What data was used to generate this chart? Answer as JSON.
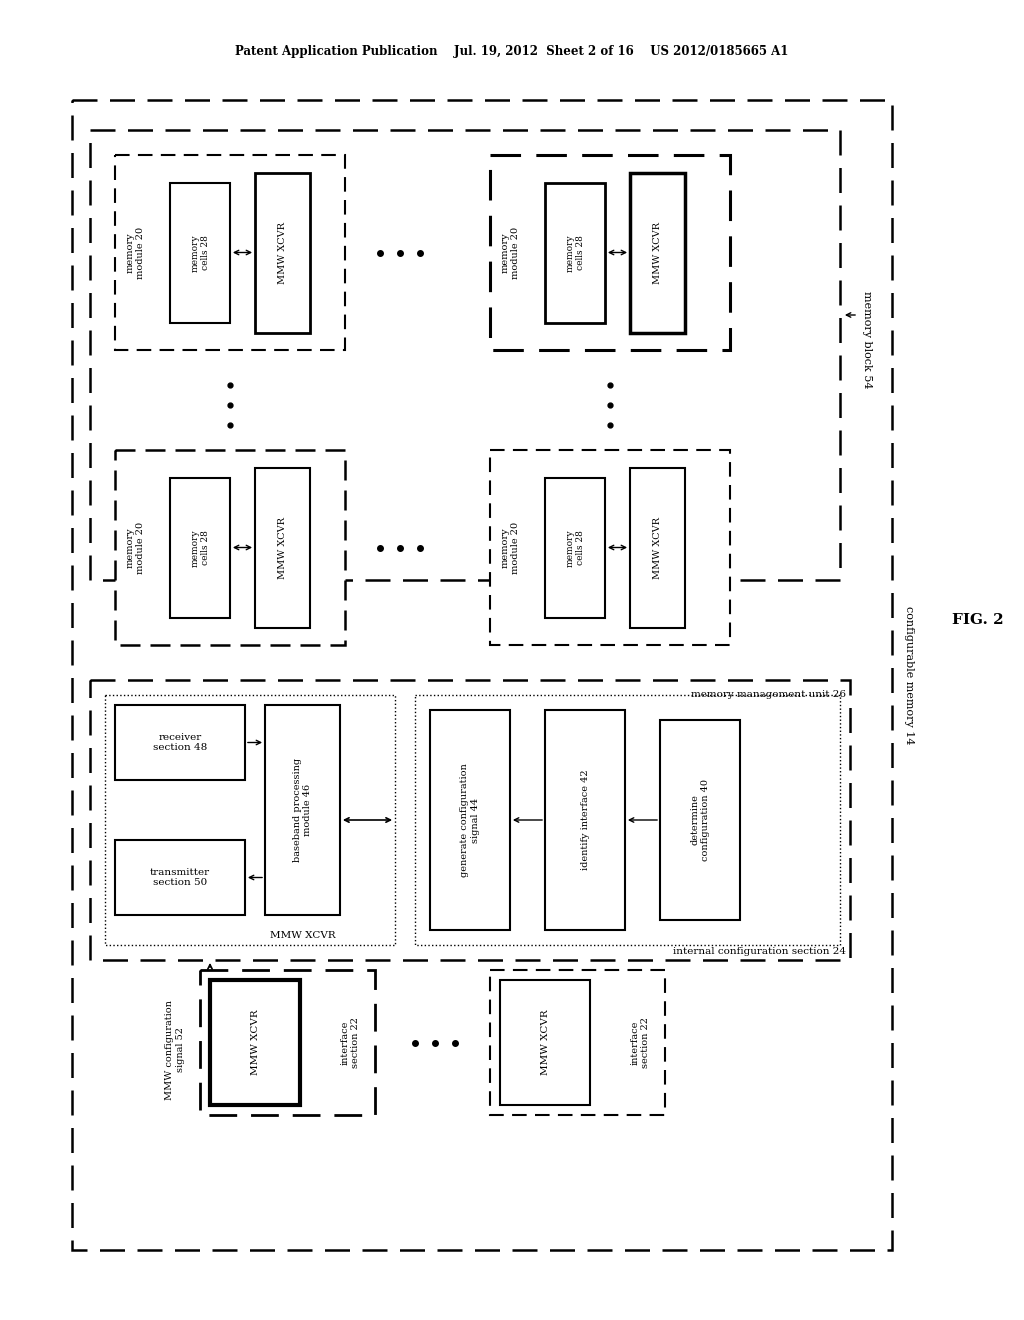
{
  "bg_color": "#ffffff",
  "header": "Patent Application Publication    Jul. 19, 2012  Sheet 2 of 16    US 2012/0185665 A1",
  "fig_label": "FIG. 2",
  "configurable_memory_label": "configurable memory 14",
  "memory_block_label": "memory block 54",
  "internal_config_label": "internal configuration section 24",
  "memory_mgmt_label": "memory management unit 26",
  "mmw_config_label": "MMW configuration\nsignal 52"
}
